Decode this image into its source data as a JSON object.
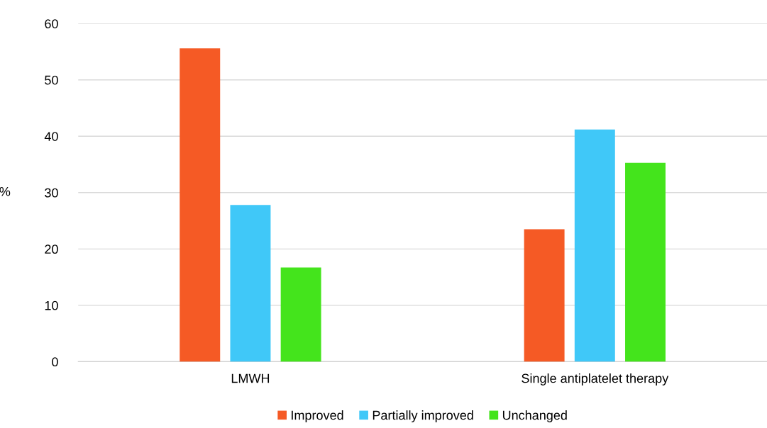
{
  "chart_data": {
    "type": "bar",
    "ylabel": "%",
    "categories": [
      "LMWH",
      "Single antiplatelet therapy"
    ],
    "series": [
      {
        "name": "Improved",
        "color": "#f55a25",
        "values": [
          55.6,
          23.5
        ]
      },
      {
        "name": "Partially improved",
        "color": "#40c8f8",
        "values": [
          27.8,
          41.2
        ]
      },
      {
        "name": "Unchanged",
        "color": "#44e41c",
        "values": [
          16.7,
          35.3
        ]
      }
    ],
    "ylim": [
      0,
      60
    ],
    "yticks": [
      0,
      10,
      20,
      30,
      40,
      50,
      60
    ],
    "grid": "y",
    "legend": "bottom"
  }
}
